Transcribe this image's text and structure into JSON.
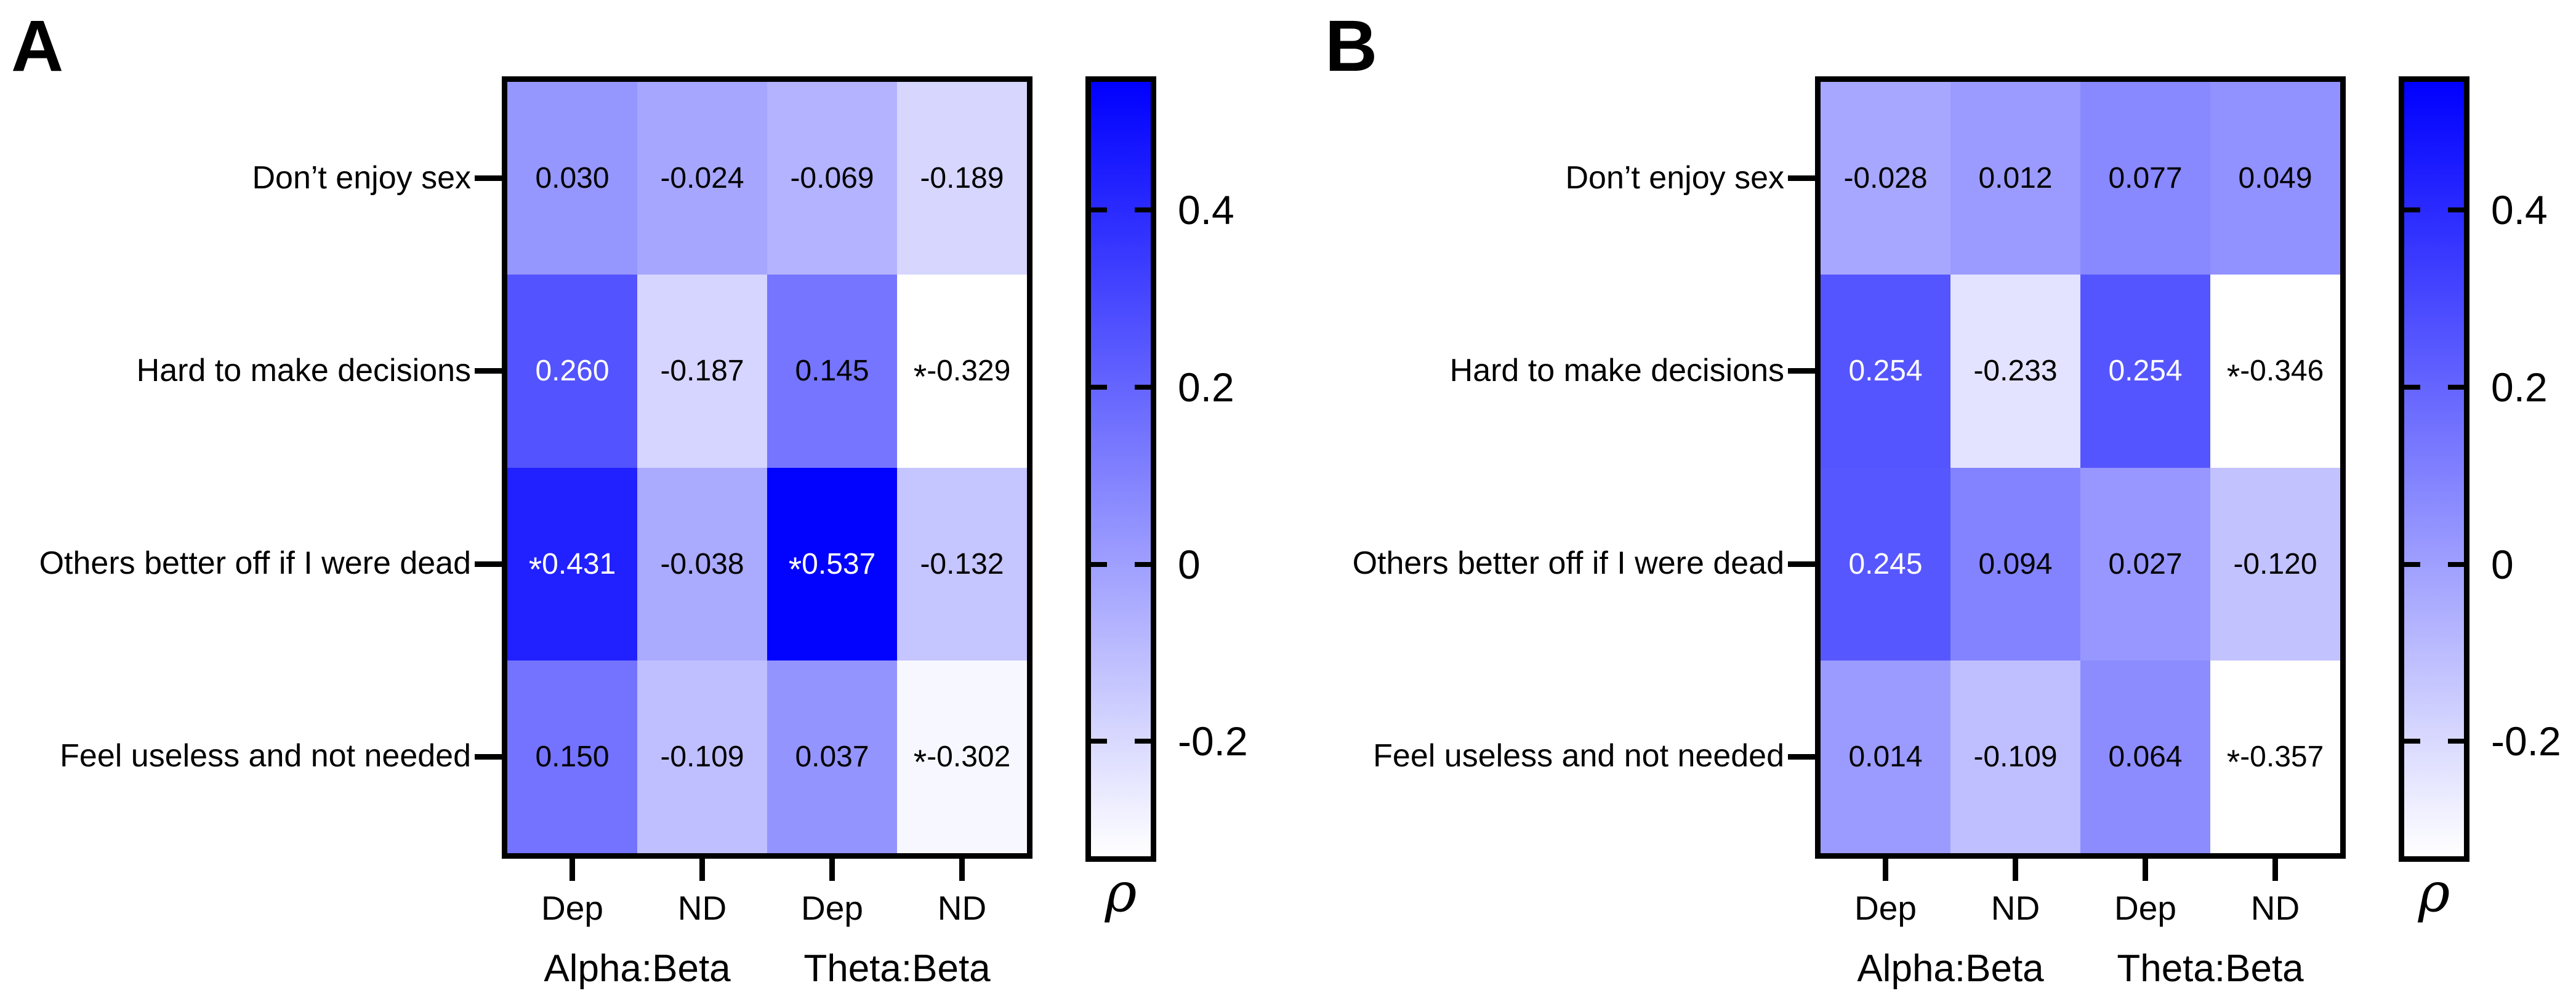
{
  "figure": {
    "background": "#FFFFFF",
    "text_color": "#000000"
  },
  "chart_data": [
    {
      "type": "heatmap",
      "panel": "A",
      "rows": [
        "Don’t enjoy sex",
        "Hard to make decisions",
        "Others better off if I were dead",
        "Feel useless and not needed"
      ],
      "columns": [
        "Dep",
        "ND",
        "Dep",
        "ND"
      ],
      "column_groups": [
        {
          "label": "Alpha:Beta",
          "span": [
            0,
            1
          ]
        },
        {
          "label": "Theta:Beta",
          "span": [
            2,
            3
          ]
        }
      ],
      "values": [
        [
          0.03,
          -0.024,
          -0.069,
          -0.189
        ],
        [
          0.26,
          -0.187,
          0.145,
          -0.329
        ],
        [
          0.431,
          -0.038,
          0.537,
          -0.132
        ],
        [
          0.15,
          -0.109,
          0.037,
          -0.302
        ]
      ],
      "value_labels": [
        [
          "0.030",
          "-0.024",
          "-0.069",
          "-0.189"
        ],
        [
          "0.260",
          "-0.187",
          "0.145",
          "-0.329"
        ],
        [
          "0.431",
          "-0.038",
          "0.537",
          "-0.132"
        ],
        [
          "0.150",
          "-0.109",
          "0.037",
          "-0.302"
        ]
      ],
      "significant": [
        [
          false,
          false,
          false,
          false
        ],
        [
          false,
          false,
          false,
          true
        ],
        [
          true,
          false,
          true,
          false
        ],
        [
          false,
          false,
          false,
          true
        ]
      ],
      "significance_marker": "*",
      "colorbar": {
        "title": "ρ",
        "tick_labels": [
          "0.4",
          "0.2",
          "0",
          "-0.2"
        ],
        "tick_values": [
          0.4,
          0.2,
          0,
          -0.2
        ],
        "vmin": -0.33,
        "vmax": 0.545,
        "color_high": "#0000FF",
        "color_low": "#FFFFFF"
      }
    },
    {
      "type": "heatmap",
      "panel": "B",
      "rows": [
        "Don’t enjoy sex",
        "Hard to make decisions",
        "Others better off if I were dead",
        "Feel useless and not needed"
      ],
      "columns": [
        "Dep",
        "ND",
        "Dep",
        "ND"
      ],
      "column_groups": [
        {
          "label": "Alpha:Beta",
          "span": [
            0,
            1
          ]
        },
        {
          "label": "Theta:Beta",
          "span": [
            2,
            3
          ]
        }
      ],
      "values": [
        [
          -0.028,
          0.012,
          0.077,
          0.049
        ],
        [
          0.254,
          -0.233,
          0.254,
          -0.346
        ],
        [
          0.245,
          0.094,
          0.027,
          -0.12
        ],
        [
          0.014,
          -0.109,
          0.064,
          -0.357
        ]
      ],
      "value_labels": [
        [
          "-0.028",
          "0.012",
          "0.077",
          "0.049"
        ],
        [
          "0.254",
          "-0.233",
          "0.254",
          "-0.346"
        ],
        [
          "0.245",
          "0.094",
          "0.027",
          "-0.120"
        ],
        [
          "0.014",
          "-0.109",
          "0.064",
          "-0.357"
        ]
      ],
      "significant": [
        [
          false,
          false,
          false,
          false
        ],
        [
          false,
          false,
          false,
          true
        ],
        [
          false,
          false,
          false,
          false
        ],
        [
          false,
          false,
          false,
          true
        ]
      ],
      "significance_marker": "*",
      "colorbar": {
        "title": "ρ",
        "tick_labels": [
          "0.4",
          "0.2",
          "0",
          "-0.2"
        ],
        "tick_values": [
          0.4,
          0.2,
          0,
          -0.2
        ],
        "vmin": -0.33,
        "vmax": 0.545,
        "color_high": "#0000FF",
        "color_low": "#FFFFFF"
      }
    }
  ]
}
